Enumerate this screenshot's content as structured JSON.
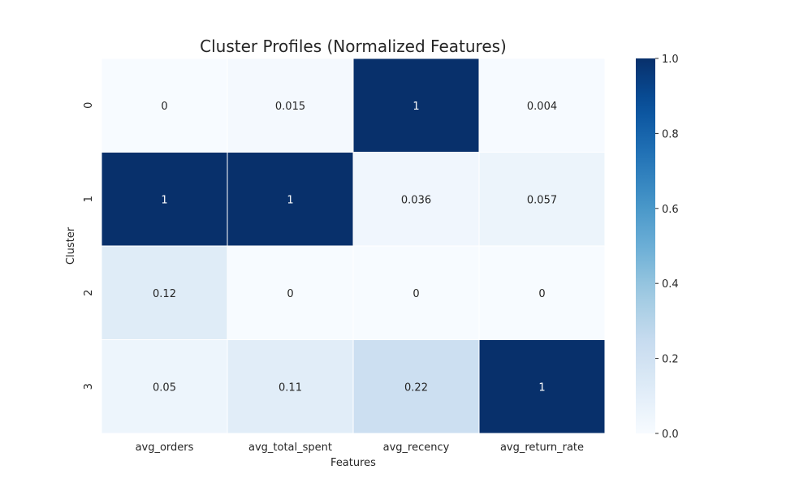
{
  "chart_data": {
    "type": "heatmap",
    "title": "Cluster Profiles (Normalized Features)",
    "xlabel": "Features",
    "ylabel": "Cluster",
    "x_categories": [
      "avg_orders",
      "avg_total_spent",
      "avg_recency",
      "avg_return_rate"
    ],
    "y_categories": [
      "0",
      "1",
      "2",
      "3"
    ],
    "values": [
      [
        0,
        0.015,
        1,
        0.004
      ],
      [
        1,
        1,
        0.036,
        0.057
      ],
      [
        0.12,
        0,
        0,
        0
      ],
      [
        0.05,
        0.11,
        0.22,
        1
      ]
    ],
    "annotations": [
      [
        "0",
        "0.015",
        "1",
        "0.004"
      ],
      [
        "1",
        "1",
        "0.036",
        "0.057"
      ],
      [
        "0.12",
        "0",
        "0",
        "0"
      ],
      [
        "0.05",
        "0.11",
        "0.22",
        "1"
      ]
    ],
    "colormap": "Blues",
    "colorbar": {
      "range": [
        0.0,
        1.0
      ],
      "ticks": [
        "0.0",
        "0.2",
        "0.4",
        "0.6",
        "0.8",
        "1.0"
      ]
    },
    "grid": false
  }
}
